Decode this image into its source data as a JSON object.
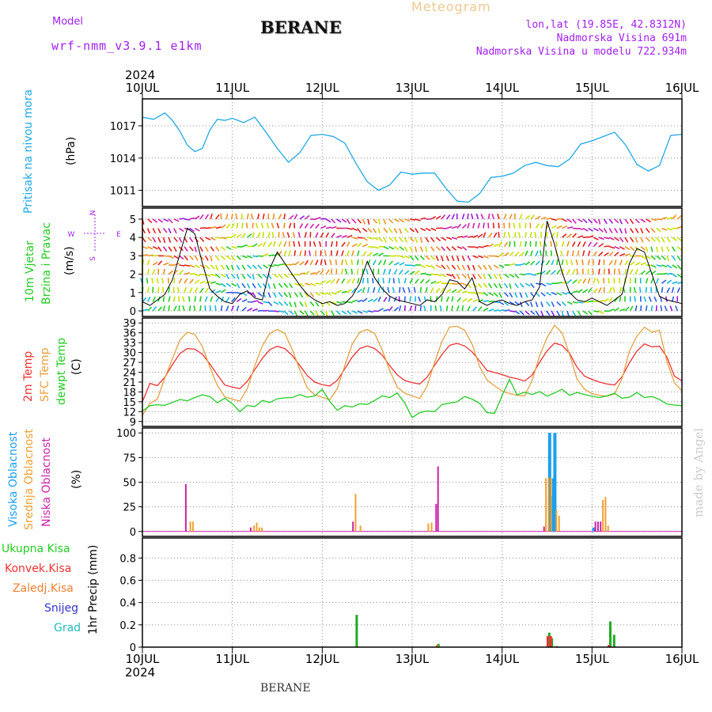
{
  "header": {
    "model_label": "Model",
    "model_name": "wrf-nmm_v3.9.1 e1km",
    "title": "BERANE",
    "meteogram": "Meteogram",
    "location": "lon,lat (19.85E, 42.8312N)",
    "altitude": "Nadmorska Visina 691m",
    "model_altitude": "Nadmorska Visina u modelu 722.934m",
    "credit": "made by Angel",
    "footer_title": "BERANE"
  },
  "colors": {
    "pressure": "#1fa8e6",
    "temp2m": "#ee3333",
    "sfc": "#e6a040",
    "dewpt": "#22cc22",
    "high": "#1aa0ee",
    "mid": "#f0a030",
    "low": "#cc22aa",
    "total_precip": "#22aa22",
    "conv_precip": "#ee3333",
    "frozen": "#f07f30",
    "snow": "#3333cc",
    "hail": "#22bbbb",
    "accent": "#a020f0",
    "wind_speed": "#000000"
  },
  "time_axis": {
    "year": "2024",
    "ticks": [
      "10JUL",
      "11JUL",
      "12JUL",
      "13JUL",
      "14JUL",
      "15JUL",
      "16JUL"
    ]
  },
  "labels": {
    "pressure": [
      "Pritisak na nivou mora",
      "(hPa)"
    ],
    "wind": [
      "10m Vjetar",
      "Brzina i Pravac",
      "(m/s)"
    ],
    "compass": "N, S, W, E",
    "temp": [
      "2m Temp",
      "SFC Temp",
      "dewpt Temp",
      "(C)"
    ],
    "cloud": [
      "Visoka Oblacnost",
      "Srednja Oblacnost",
      "Niska Oblacnost",
      "(%)"
    ],
    "precip_legend": [
      "Ukupna Kisa",
      "Konvek.Kisa",
      "Zaledj.Kisa",
      "Snijeg",
      "Grad"
    ],
    "precip_unit": "1hr Precip (mm)"
  },
  "chart_data": [
    {
      "type": "line",
      "panel": "pressure",
      "ylabel": "Pritisak na nivou mora (hPa)",
      "ylim": [
        1009.5,
        1019.5
      ],
      "yticks": [
        1011,
        1014,
        1017
      ],
      "x": [
        0,
        3,
        6,
        8,
        10,
        12,
        14,
        16,
        18,
        20,
        22,
        24,
        27,
        30,
        33,
        36,
        39,
        42,
        45,
        48,
        51,
        54,
        57,
        60,
        63,
        66,
        69,
        72,
        75,
        78,
        81,
        84,
        87,
        90,
        93,
        96,
        99,
        102,
        105,
        108,
        111,
        114,
        117,
        120,
        123,
        126,
        129,
        132,
        135,
        138,
        141,
        144
      ],
      "series": [
        {
          "values": [
            1017.8,
            1017.6,
            1018.2,
            1017.5,
            1016.5,
            1015.2,
            1014.6,
            1014.9,
            1016.6,
            1017.6,
            1017.5,
            1017.7,
            1017.3,
            1017.8,
            1016.4,
            1014.9,
            1013.6,
            1014.5,
            1016.1,
            1016.2,
            1016.0,
            1015.4,
            1013.5,
            1011.8,
            1011.0,
            1011.5,
            1012.7,
            1012.5,
            1012.6,
            1012.6,
            1011.2,
            1010.0,
            1009.9,
            1010.7,
            1012.2,
            1012.3,
            1012.6,
            1013.3,
            1013.6,
            1013.3,
            1013.2,
            1013.9,
            1015.3,
            1015.6,
            1016.0,
            1016.4,
            1015.2,
            1013.4,
            1012.8,
            1013.3,
            1016.1,
            1016.2
          ]
        }
      ]
    },
    {
      "type": "line",
      "panel": "wind",
      "ylabel": "10m Vjetar Brzina i Pravac (m/s)",
      "ylim": [
        -0.3,
        5.6
      ],
      "yticks": [
        0,
        1,
        2,
        3,
        4,
        5
      ],
      "x": [
        0,
        2,
        4,
        6,
        8,
        10,
        12,
        14,
        16,
        18,
        20,
        22,
        24,
        26,
        28,
        30,
        32,
        34,
        36,
        38,
        40,
        42,
        44,
        46,
        48,
        50,
        52,
        54,
        56,
        58,
        60,
        62,
        64,
        66,
        68,
        70,
        72,
        74,
        76,
        78,
        80,
        82,
        84,
        86,
        88,
        90,
        92,
        94,
        96,
        98,
        100,
        102,
        104,
        106,
        108,
        110,
        112,
        114,
        116,
        118,
        120,
        122,
        124,
        126,
        128,
        130,
        132,
        134,
        136,
        138,
        140,
        142,
        144
      ],
      "series": [
        {
          "name": "Brzina",
          "values": [
            0.5,
            0.3,
            0.6,
            0.9,
            1.7,
            3.1,
            4.5,
            4.2,
            2.6,
            1.2,
            0.8,
            0.5,
            0.4,
            0.9,
            1.1,
            0.7,
            0.6,
            2.3,
            3.2,
            2.6,
            2.0,
            1.4,
            0.9,
            0.6,
            0.4,
            0.5,
            0.3,
            0.4,
            0.8,
            1.5,
            2.7,
            1.8,
            1.2,
            0.8,
            0.6,
            0.5,
            0.4,
            0.3,
            0.6,
            0.5,
            0.9,
            1.7,
            1.6,
            1.2,
            1.8,
            0.5,
            0.3,
            0.5,
            0.6,
            0.4,
            0.3,
            0.5,
            0.6,
            1.3,
            4.9,
            3.6,
            2.1,
            1.0,
            0.6,
            0.5,
            0.7,
            0.5,
            0.3,
            0.6,
            0.9,
            2.6,
            3.4,
            3.2,
            2.0,
            0.8,
            0.6,
            0.5,
            0.4
          ]
        }
      ]
    },
    {
      "type": "line",
      "panel": "temperature",
      "ylabel": "Temp (C)",
      "ylim": [
        7.5,
        40.5
      ],
      "yticks": [
        9,
        12,
        15,
        18,
        21,
        24,
        27,
        30,
        33,
        36,
        39
      ],
      "x": [
        0,
        2,
        4,
        6,
        8,
        10,
        12,
        14,
        16,
        18,
        20,
        22,
        24,
        26,
        28,
        30,
        32,
        34,
        36,
        38,
        40,
        42,
        44,
        46,
        48,
        50,
        52,
        54,
        56,
        58,
        60,
        62,
        64,
        66,
        68,
        70,
        72,
        74,
        76,
        78,
        80,
        82,
        84,
        86,
        88,
        90,
        92,
        94,
        96,
        98,
        100,
        102,
        104,
        106,
        108,
        110,
        112,
        114,
        116,
        118,
        120,
        122,
        124,
        126,
        128,
        130,
        132,
        134,
        136,
        138,
        140,
        142,
        144
      ],
      "series": [
        {
          "name": "2m Temp",
          "values": [
            15.0,
            20.6,
            19.9,
            22.5,
            26.3,
            29.7,
            31.2,
            31.0,
            29.5,
            26.5,
            23.2,
            20.1,
            19.5,
            19.0,
            21.2,
            24.8,
            28.2,
            30.9,
            31.9,
            31.2,
            29.1,
            26.1,
            23.0,
            21.0,
            20.2,
            19.8,
            21.5,
            25.0,
            28.6,
            31.2,
            32.0,
            31.2,
            29.2,
            26.0,
            23.2,
            21.5,
            20.8,
            20.4,
            22.5,
            26.1,
            29.5,
            32.2,
            32.8,
            32.0,
            30.2,
            27.4,
            24.5,
            23.9,
            23.3,
            22.5,
            22.0,
            21.3,
            23.1,
            27.0,
            30.5,
            32.9,
            32.2,
            29.8,
            25.5,
            22.8,
            21.8,
            21.0,
            20.4,
            20.1,
            22.6,
            26.9,
            30.5,
            32.6,
            31.7,
            31.9,
            28.6,
            22.8,
            21.4
          ]
        },
        {
          "name": "SFC Temp",
          "values": [
            10.9,
            14.5,
            15.8,
            22.3,
            28.1,
            33.8,
            36.2,
            35.5,
            31.8,
            25.5,
            20.0,
            16.5,
            15.8,
            15.2,
            19.0,
            26.0,
            32.0,
            35.8,
            37.0,
            35.8,
            30.9,
            24.8,
            19.2,
            17.1,
            16.4,
            15.6,
            19.0,
            26.0,
            32.5,
            36.2,
            37.0,
            35.8,
            30.8,
            24.5,
            19.5,
            17.6,
            16.8,
            16.0,
            19.8,
            27.0,
            33.5,
            37.8,
            38.0,
            36.8,
            32.5,
            25.7,
            21.6,
            19.8,
            18.3,
            17.5,
            17.0,
            16.8,
            21.5,
            29.0,
            34.5,
            38.3,
            36.0,
            29.5,
            21.9,
            18.8,
            17.5,
            17.0,
            16.7,
            17.4,
            22.0,
            30.5,
            35.0,
            37.7,
            36.2,
            36.8,
            27.2,
            20.8,
            18.3
          ]
        },
        {
          "name": "dewpt Temp",
          "values": [
            12.2,
            13.8,
            14.1,
            13.9,
            14.8,
            15.7,
            15.3,
            16.3,
            17.1,
            16.6,
            14.7,
            16.1,
            14.4,
            12.0,
            13.9,
            13.5,
            15.4,
            14.8,
            15.9,
            16.2,
            16.3,
            17.2,
            16.4,
            16.8,
            18.8,
            15.1,
            12.4,
            13.8,
            13.4,
            14.4,
            14.2,
            15.4,
            16.8,
            16.3,
            17.7,
            14.7,
            10.2,
            11.7,
            12.2,
            12.0,
            14.2,
            14.6,
            15.0,
            16.6,
            15.8,
            14.5,
            11.7,
            11.5,
            16.9,
            21.8,
            17.1,
            17.9,
            17.2,
            18.1,
            16.7,
            17.7,
            18.8,
            17.0,
            17.8,
            17.2,
            16.7,
            16.3,
            16.8,
            17.6,
            16.1,
            16.4,
            17.8,
            16.3,
            16.6,
            15.7,
            14.3,
            14.0,
            13.8
          ]
        }
      ]
    },
    {
      "type": "bar",
      "panel": "cloud",
      "ylabel": "Oblacnost (%)",
      "ylim": [
        -5,
        105
      ],
      "yticks": [
        0,
        25,
        50,
        75,
        100
      ],
      "series": [
        {
          "name": "Visoka Oblacnost",
          "points": [
            [
              108.7,
              100
            ],
            [
              110.1,
              100
            ],
            [
              109.8,
              54
            ],
            [
              109.3,
              36
            ],
            [
              120.5,
              4
            ]
          ]
        },
        {
          "name": "Srednja Oblacnost",
          "points": [
            [
              12.8,
              10
            ],
            [
              13.5,
              10
            ],
            [
              29.8,
              6
            ],
            [
              30.5,
              9
            ],
            [
              31.2,
              4
            ],
            [
              31.9,
              4
            ],
            [
              56.9,
              38
            ],
            [
              58.2,
              6
            ],
            [
              76.3,
              8
            ],
            [
              77.2,
              9
            ],
            [
              107.7,
              54
            ],
            [
              108.4,
              55
            ],
            [
              109.1,
              54
            ],
            [
              110.5,
              22
            ],
            [
              111.2,
              16
            ],
            [
              122.9,
              32
            ],
            [
              123.6,
              35
            ],
            [
              124.3,
              6
            ]
          ]
        },
        {
          "name": "Niska Oblacnost",
          "points": [
            [
              11.6,
              48
            ],
            [
              28.9,
              4
            ],
            [
              56.2,
              10
            ],
            [
              78.9,
              66
            ],
            [
              78.4,
              28
            ],
            [
              107.2,
              5
            ],
            [
              122.3,
              10
            ],
            [
              121.6,
              10
            ],
            [
              120.9,
              10
            ]
          ]
        }
      ]
    },
    {
      "type": "bar",
      "panel": "precipitation",
      "ylabel": "1hr Precip (mm)",
      "ylim": [
        0,
        0.98
      ],
      "yticks": [
        0,
        0.2,
        0.4,
        0.6,
        0.8
      ],
      "series": [
        {
          "name": "Ukupna Kisa",
          "points": [
            [
              57.2,
              0.29
            ],
            [
              79.0,
              0.03
            ],
            [
              108.6,
              0.13
            ],
            [
              109.3,
              0.08
            ],
            [
              110.6,
              0.01
            ],
            [
              124.9,
              0.23
            ],
            [
              125.9,
              0.11
            ]
          ]
        },
        {
          "name": "Konvek.Kisa",
          "points": [
            [
              108.2,
              0.1
            ],
            [
              109.0,
              0.1
            ],
            [
              124.5,
              0.02
            ]
          ]
        },
        {
          "name": "Zaledj.Kisa",
          "points": [
            [
              78.6,
              0.02
            ]
          ]
        },
        {
          "name": "Snijeg",
          "points": []
        },
        {
          "name": "Grad",
          "points": []
        }
      ]
    }
  ]
}
